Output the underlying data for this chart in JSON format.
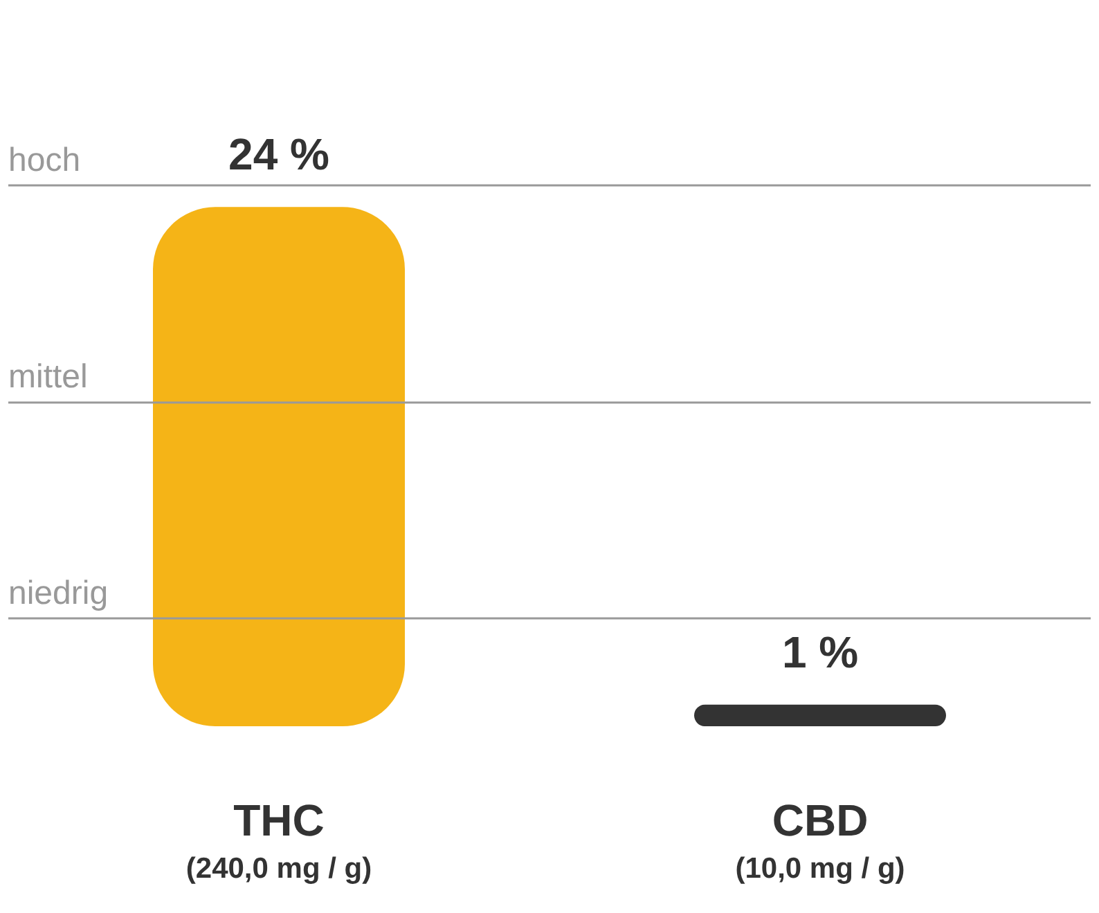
{
  "chart_data": {
    "type": "bar",
    "categories": [
      "THC\n(240,0 mg / g)",
      "CBD\n(10,0 mg / g)"
    ],
    "values": [
      24,
      1
    ],
    "colors": [
      "#f5b417",
      "#333333"
    ],
    "value_labels": [
      "24 %",
      "1 %"
    ],
    "ref_lines": [
      {
        "axis": "y",
        "value": 25,
        "label": "hoch",
        "color": "#999999"
      },
      {
        "axis": "y",
        "value": 15,
        "label": "mittel",
        "color": "#999999"
      },
      {
        "axis": "y",
        "value": 5,
        "label": "niedrig",
        "color": "#999999"
      }
    ]
  }
}
